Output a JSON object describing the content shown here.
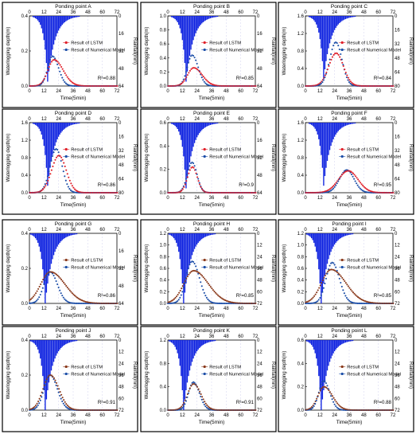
{
  "figure": {
    "labels": {
      "top_axis": "Time(5min)",
      "left_axis": "Waterlogging depth(m)",
      "right_axis": "Rainfall(mm)",
      "legend_lstm": "Result of LSTM",
      "legend_numerical": "Result of Numerical  Model"
    },
    "colors": {
      "lstm": "#e0202a",
      "numerical": "#1d4fa8",
      "rainfall": "#1024e0",
      "lstm_alt": "#8a3a1c"
    }
  },
  "chart_data": [
    {
      "type": "line",
      "title": "Ponding point A",
      "xlabel": "Time(5min)",
      "ylabel": "Waterlogging depth(m)",
      "y2label": "Rainfall(mm)",
      "x_ticks": [
        "0",
        "12",
        "24",
        "36",
        "48",
        "60",
        "72"
      ],
      "top_x_ticks": [
        "0",
        "12",
        "24",
        "36",
        "48",
        "60",
        "72"
      ],
      "ylim": [
        0,
        0.4
      ],
      "y_ticks": [
        "0.0",
        "0.2",
        "0.4"
      ],
      "y2_ticks": [
        "0",
        "16",
        "32",
        "48",
        "64"
      ],
      "legend": [
        "Result of LSTM",
        "Result of Numerical  Model"
      ],
      "annotation": "R²=0.88",
      "lstm_style": "red",
      "series": [
        {
          "name": "Result of LSTM",
          "peak_x": 20,
          "peak_y": 0.15,
          "sigma_left": 5,
          "sigma_right": 7.5
        },
        {
          "name": "Result of Numerical  Model",
          "peak_x": 19,
          "peak_y": 0.17,
          "sigma_left": 4,
          "sigma_right": 5
        }
      ],
      "rainfall_peak_x": 15,
      "rainfall_peak": 60
    },
    {
      "type": "line",
      "title": "Ponding point B",
      "xlabel": "Time(5min)",
      "ylabel": "Waterlogging depth(m)",
      "y2label": "Rainfall(mm)",
      "x_ticks": [
        "0",
        "12",
        "24",
        "36",
        "48",
        "60",
        "72"
      ],
      "top_x_ticks": [
        "0",
        "12",
        "24",
        "36",
        "48",
        "60",
        "72"
      ],
      "ylim": [
        0,
        1.0
      ],
      "y_ticks": [
        "0.0",
        "0.2",
        "0.4",
        "0.6",
        "0.8",
        "1.0"
      ],
      "y2_ticks": [
        "0",
        "16",
        "32",
        "48",
        "64"
      ],
      "legend": [
        "Result of LSTM",
        "Result of Numerical  Model"
      ],
      "annotation": "R²=0.85",
      "lstm_style": "red",
      "series": [
        {
          "name": "Result of LSTM",
          "peak_x": 21,
          "peak_y": 0.26,
          "sigma_left": 5,
          "sigma_right": 7
        },
        {
          "name": "Result of Numerical  Model",
          "peak_x": 20,
          "peak_y": 0.44,
          "sigma_left": 4,
          "sigma_right": 5
        }
      ],
      "rainfall_peak_x": 15,
      "rainfall_peak": 60
    },
    {
      "type": "line",
      "title": "Ponding point C",
      "xlabel": "Time(5min)",
      "ylabel": "Waterlogging depth(m)",
      "y2label": "Rainfall(mm)",
      "x_ticks": [
        "0",
        "12",
        "24",
        "36",
        "48",
        "60",
        "72"
      ],
      "top_x_ticks": [
        "0",
        "12",
        "24",
        "36",
        "48",
        "60",
        "72"
      ],
      "ylim": [
        0,
        1.6
      ],
      "y_ticks": [
        "0.0",
        "0.4",
        "0.8",
        "1.2",
        "1.6"
      ],
      "y2_ticks": [
        "0",
        "16",
        "32",
        "48",
        "64",
        "80"
      ],
      "legend": [
        "Result of LSTM",
        "Result of Numerical  Model"
      ],
      "annotation": "R²=0.84",
      "lstm_style": "red",
      "series": [
        {
          "name": "Result of LSTM",
          "peak_x": 25,
          "peak_y": 0.75,
          "sigma_left": 6,
          "sigma_right": 6
        },
        {
          "name": "Result of Numerical  Model",
          "peak_x": 25,
          "peak_y": 1.0,
          "sigma_left": 5,
          "sigma_right": 5
        }
      ],
      "rainfall_peak_x": 15,
      "rainfall_peak": 72
    },
    {
      "type": "line",
      "title": "Ponding point D",
      "xlabel": "Time(5min)",
      "ylabel": "Waterlogging depth(m)",
      "y2label": "Rainfall(mm)",
      "x_ticks": [
        "0",
        "12",
        "24",
        "36",
        "48",
        "60",
        "72"
      ],
      "top_x_ticks": [
        "0",
        "12",
        "24",
        "36",
        "48",
        "60",
        "72"
      ],
      "ylim": [
        0,
        1.6
      ],
      "y_ticks": [
        "0.0",
        "0.4",
        "0.8",
        "1.2",
        "1.6"
      ],
      "y2_ticks": [
        "0",
        "16",
        "32",
        "48",
        "64",
        "80"
      ],
      "legend": [
        "Result of LSTM",
        "Result of Numerical  Model"
      ],
      "annotation": "R²=0.86",
      "lstm_style": "red",
      "series": [
        {
          "name": "Result of LSTM",
          "peak_x": 24,
          "peak_y": 0.85,
          "sigma_left": 6,
          "sigma_right": 6
        },
        {
          "name": "Result of Numerical  Model",
          "peak_x": 22,
          "peak_y": 1.0,
          "sigma_left": 5,
          "sigma_right": 5
        }
      ],
      "rainfall_peak_x": 15,
      "rainfall_peak": 72
    },
    {
      "type": "line",
      "title": "Ponding point E",
      "xlabel": "Time(5min)",
      "ylabel": "Waterlogging depth(m)",
      "y2label": "Rainfall(mm)",
      "x_ticks": [
        "0",
        "12",
        "24",
        "36",
        "48",
        "60",
        "72"
      ],
      "top_x_ticks": [
        "0",
        "12",
        "24",
        "36",
        "48",
        "60",
        "72"
      ],
      "ylim": [
        0,
        0.6
      ],
      "y_ticks": [
        "0.0",
        "0.2",
        "0.4",
        "0.6"
      ],
      "y2_ticks": [
        "0",
        "16",
        "32",
        "48",
        "64"
      ],
      "legend": [
        "Result of LSTM",
        "Result of Numerical  Model"
      ],
      "annotation": "R²=0.9",
      "lstm_style": "red",
      "series": [
        {
          "name": "Result of LSTM",
          "peak_x": 20,
          "peak_y": 0.22,
          "sigma_left": 4,
          "sigma_right": 4
        },
        {
          "name": "Result of Numerical  Model",
          "peak_x": 20,
          "peak_y": 0.26,
          "sigma_left": 4,
          "sigma_right": 4
        }
      ],
      "rainfall_peak_x": 15,
      "rainfall_peak": 60
    },
    {
      "type": "line",
      "title": "Ponding point F",
      "xlabel": "Time(5min)",
      "ylabel": "Waterlogging depth(m)",
      "y2label": "Rainfall(mm)",
      "x_ticks": [
        "0",
        "12",
        "24",
        "36",
        "48",
        "60",
        "72"
      ],
      "top_x_ticks": [
        "0",
        "12",
        "24",
        "36",
        "48",
        "60",
        "72"
      ],
      "ylim": [
        0,
        1.6
      ],
      "y_ticks": [
        "0.0",
        "0.4",
        "0.8",
        "1.2",
        "1.6"
      ],
      "y2_ticks": [
        "0",
        "16",
        "32",
        "48",
        "64",
        "80"
      ],
      "legend": [
        "Result of LSTM",
        "Result of Numerical  Model"
      ],
      "annotation": "R²=0.95",
      "lstm_style": "red",
      "series": [
        {
          "name": "Result of LSTM",
          "peak_x": 35,
          "peak_y": 0.5,
          "sigma_left": 8,
          "sigma_right": 8
        },
        {
          "name": "Result of Numerical  Model",
          "peak_x": 34,
          "peak_y": 0.52,
          "sigma_left": 6,
          "sigma_right": 6
        }
      ],
      "rainfall_peak_x": 15,
      "rainfall_peak": 72
    },
    {
      "type": "line",
      "title": "Ponding point G",
      "xlabel": "Time(5min)",
      "ylabel": "Waterlogging depth(m)",
      "y2label": "Rainfall(mm)",
      "x_ticks": [
        "0",
        "12",
        "24",
        "36",
        "48",
        "60",
        "72"
      ],
      "top_x_ticks": [
        "0",
        "12",
        "24",
        "36",
        "48",
        "60",
        "72"
      ],
      "ylim": [
        0,
        0.4
      ],
      "y_ticks": [
        "0.0",
        "0.2",
        "0.4"
      ],
      "y2_ticks": [
        "0",
        "16",
        "32",
        "48",
        "64"
      ],
      "legend": [
        "Result of LSTM",
        "Result of Numerical  Model"
      ],
      "annotation": "R²=0.86",
      "lstm_style": "brown",
      "series": [
        {
          "name": "Result of LSTM",
          "peak_x": 17,
          "peak_y": 0.18,
          "sigma_left": 8,
          "sigma_right": 12
        },
        {
          "name": "Result of Numerical  Model",
          "peak_x": 17,
          "peak_y": 0.18,
          "sigma_left": 5,
          "sigma_right": 6
        }
      ],
      "rainfall_peak_x": 13,
      "rainfall_peak": 64
    },
    {
      "type": "line",
      "title": "Ponding point H",
      "xlabel": "Time(5min)",
      "ylabel": "Waterlogging depth(m)",
      "y2label": "Rainfall(mm)",
      "x_ticks": [
        "0",
        "12",
        "24",
        "36",
        "48",
        "60",
        "72"
      ],
      "top_x_ticks": [
        "0",
        "12",
        "24",
        "36",
        "48",
        "60",
        "72"
      ],
      "ylim": [
        0,
        1.2
      ],
      "y_ticks": [
        "0.0",
        "0.2",
        "0.4",
        "0.6",
        "0.8",
        "1.0",
        "1.2"
      ],
      "y2_ticks": [
        "0",
        "12",
        "24",
        "36",
        "48",
        "60",
        "72"
      ],
      "legend": [
        "Result of LSTM",
        "Result of Numerical  Model"
      ],
      "annotation": "R²=0.85",
      "lstm_style": "brown",
      "series": [
        {
          "name": "Result of LSTM",
          "peak_x": 21,
          "peak_y": 0.56,
          "sigma_left": 8,
          "sigma_right": 12
        },
        {
          "name": "Result of Numerical  Model",
          "peak_x": 20,
          "peak_y": 0.72,
          "sigma_left": 5,
          "sigma_right": 6
        }
      ],
      "rainfall_peak_x": 13,
      "rainfall_peak": 72
    },
    {
      "type": "line",
      "title": "Ponding point I",
      "xlabel": "Time(5min)",
      "ylabel": "Waterlogging depth(m)",
      "y2label": "Rainfall(mm)",
      "x_ticks": [
        "0",
        "12",
        "24",
        "36",
        "48",
        "60",
        "72"
      ],
      "top_x_ticks": [
        "0",
        "12",
        "24",
        "36",
        "48",
        "60",
        "72"
      ],
      "ylim": [
        0,
        1.2
      ],
      "y_ticks": [
        "0.0",
        "0.2",
        "0.4",
        "0.6",
        "0.8",
        "1.0",
        "1.2"
      ],
      "y2_ticks": [
        "0",
        "12",
        "24",
        "36",
        "48",
        "60",
        "72"
      ],
      "legend": [
        "Result of LSTM",
        "Result of Numerical  Model"
      ],
      "annotation": "R²=0.85",
      "lstm_style": "brown",
      "series": [
        {
          "name": "Result of LSTM",
          "peak_x": 21,
          "peak_y": 0.58,
          "sigma_left": 8,
          "sigma_right": 12
        },
        {
          "name": "Result of Numerical  Model",
          "peak_x": 22,
          "peak_y": 0.7,
          "sigma_left": 5,
          "sigma_right": 6
        }
      ],
      "rainfall_peak_x": 13,
      "rainfall_peak": 72
    },
    {
      "type": "line",
      "title": "Ponding point J",
      "xlabel": "Time(5min)",
      "ylabel": "Waterlogging depth(m)",
      "y2label": "Rainfall(mm)",
      "x_ticks": [
        "0",
        "12",
        "24",
        "36",
        "48",
        "60",
        "72"
      ],
      "top_x_ticks": [
        "0",
        "12",
        "24",
        "36",
        "48",
        "60",
        "72"
      ],
      "ylim": [
        0,
        0.4
      ],
      "y_ticks": [
        "0.0",
        "0.2",
        "0.4"
      ],
      "y2_ticks": [
        "0",
        "12",
        "24",
        "36",
        "48",
        "60",
        "72"
      ],
      "legend": [
        "Result of LSTM",
        "Result of Numerical  Model"
      ],
      "annotation": "R²=0.91",
      "lstm_style": "brown",
      "series": [
        {
          "name": "Result of LSTM",
          "peak_x": 17,
          "peak_y": 0.2,
          "sigma_left": 6,
          "sigma_right": 7
        },
        {
          "name": "Result of Numerical  Model",
          "peak_x": 17,
          "peak_y": 0.2,
          "sigma_left": 5,
          "sigma_right": 6
        }
      ],
      "rainfall_peak_x": 13,
      "rainfall_peak": 72
    },
    {
      "type": "line",
      "title": "Ponding point K",
      "xlabel": "Time(5min)",
      "ylabel": "Waterlogging depth(m)",
      "y2label": "Rainfall(mm)",
      "x_ticks": [
        "0",
        "12",
        "24",
        "36",
        "48",
        "60",
        "72"
      ],
      "top_x_ticks": [
        "0",
        "12",
        "24",
        "36",
        "48",
        "60",
        "72"
      ],
      "ylim": [
        0,
        1.2
      ],
      "y_ticks": [
        "0.0",
        "0.4",
        "0.8",
        "1.2"
      ],
      "y2_ticks": [
        "0",
        "12",
        "24",
        "36",
        "48",
        "60",
        "72"
      ],
      "legend": [
        "Result of LSTM",
        "Result of Numerical  Model"
      ],
      "annotation": "R²=0.91",
      "lstm_style": "brown",
      "series": [
        {
          "name": "Result of LSTM",
          "peak_x": 21,
          "peak_y": 0.45,
          "sigma_left": 5,
          "sigma_right": 6
        },
        {
          "name": "Result of Numerical  Model",
          "peak_x": 21,
          "peak_y": 0.48,
          "sigma_left": 4,
          "sigma_right": 5
        }
      ],
      "rainfall_peak_x": 13,
      "rainfall_peak": 72
    },
    {
      "type": "line",
      "title": "Ponding point L",
      "xlabel": "Time(5min)",
      "ylabel": "Waterlogging depth(m)",
      "y2label": "Rainfall(mm)",
      "x_ticks": [
        "0",
        "12",
        "24",
        "36",
        "48",
        "60",
        "72"
      ],
      "top_x_ticks": [
        "0",
        "12",
        "24",
        "36",
        "48",
        "60",
        "72"
      ],
      "ylim": [
        0,
        0.6
      ],
      "y_ticks": [
        "0.0",
        "0.2",
        "0.4",
        "0.6"
      ],
      "y2_ticks": [
        "0",
        "12",
        "24",
        "36",
        "48",
        "60",
        "72"
      ],
      "legend": [
        "Result of LSTM",
        "Result of Numerical  Model"
      ],
      "annotation": "R²=0.88",
      "lstm_style": "brown",
      "series": [
        {
          "name": "Result of LSTM",
          "peak_x": 15,
          "peak_y": 0.2,
          "sigma_left": 5,
          "sigma_right": 7
        },
        {
          "name": "Result of Numerical  Model",
          "peak_x": 15,
          "peak_y": 0.25,
          "sigma_left": 4,
          "sigma_right": 5
        }
      ],
      "rainfall_peak_x": 13,
      "rainfall_peak": 72
    }
  ]
}
